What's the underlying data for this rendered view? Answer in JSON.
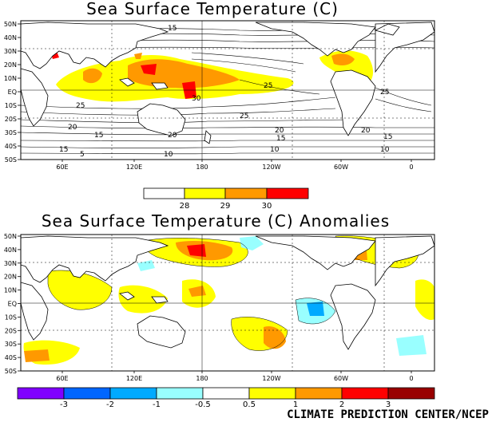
{
  "colors": {
    "sst_28_29": "#ffff00",
    "sst_29_30": "#ff9900",
    "sst_gt_30": "#ff0000",
    "anom_-3": "#8000ff",
    "anom_-2": "#0066ff",
    "anom_-1": "#00aaff",
    "anom_-0.5": "#99ffff",
    "anom_0.5": "#ffff00",
    "anom_1": "#ff9900",
    "anom_2": "#ff0000",
    "anom_3": "#990000",
    "land": "#ffffff"
  },
  "map_top": {
    "title": "Sea Surface Temperature (C)",
    "lat_labels": [
      "50N",
      "40N",
      "30N",
      "20N",
      "10N",
      "EQ",
      "10S",
      "20S",
      "30S",
      "40S",
      "50S"
    ],
    "lon_labels": [
      "60E",
      "120E",
      "180",
      "120W",
      "60W",
      "0"
    ],
    "contour_labels": [
      "15",
      "25",
      "30",
      "25",
      "20",
      "15",
      "20",
      "15",
      "10",
      "5",
      "25",
      "20",
      "15",
      "10",
      "25",
      "20",
      "15",
      "10"
    ],
    "colorbar": {
      "labels": [
        "28",
        "29",
        "30"
      ]
    }
  },
  "map_bottom": {
    "title": "Sea Surface Temperature (C) Anomalies",
    "lat_labels": [
      "50N",
      "40N",
      "30N",
      "20N",
      "10N",
      "EQ",
      "10S",
      "20S",
      "30S",
      "40S",
      "50S"
    ],
    "lon_labels": [
      "60E",
      "120E",
      "180",
      "120W",
      "60W",
      "0"
    ],
    "colorbar": {
      "labels": [
        "-3",
        "-2",
        "-1",
        "-0.5",
        "0.5",
        "1",
        "2",
        "3"
      ]
    }
  },
  "credit": "CLIMATE PREDICTION CENTER/NCEP"
}
